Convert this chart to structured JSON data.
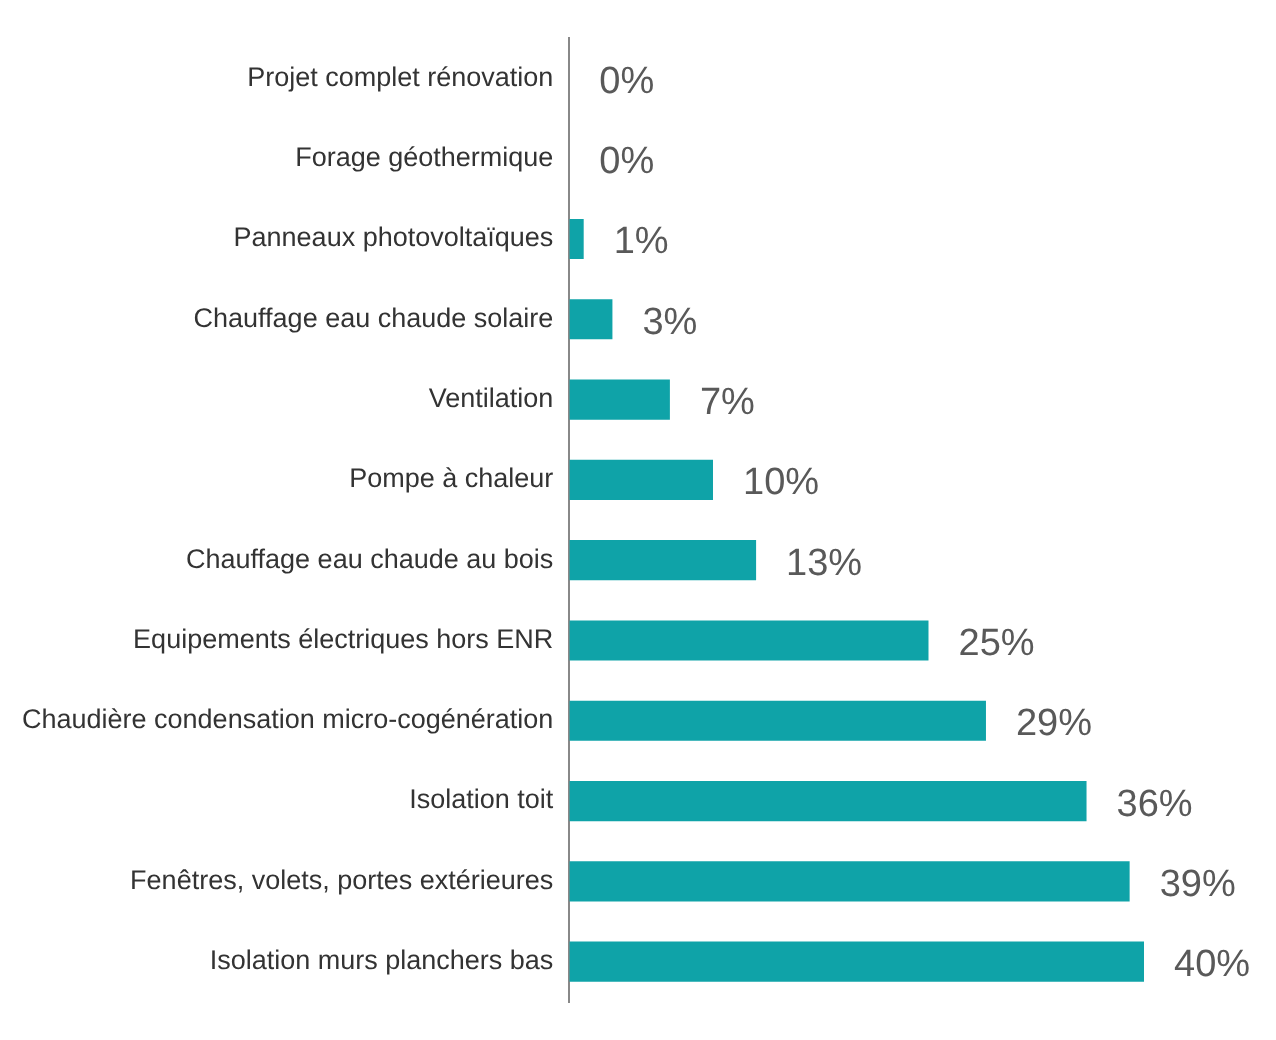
{
  "chart_data": {
    "type": "bar",
    "orientation": "horizontal",
    "categories": [
      "Projet complet rénovation",
      "Forage géothermique",
      "Panneaux photovoltaïques",
      "Chauffage eau chaude solaire",
      "Ventilation",
      "Pompe à chaleur",
      "Chauffage eau chaude au bois",
      "Equipements électriques hors ENR",
      "Chaudière condensation micro-cogénération",
      "Isolation toit",
      "Fenêtres, volets, portes extérieures",
      "Isolation murs planchers bas"
    ],
    "values": [
      0,
      0,
      1,
      3,
      7,
      10,
      13,
      25,
      29,
      36,
      39,
      40
    ],
    "value_labels": [
      "0%",
      "0%",
      "1%",
      "3%",
      "7%",
      "10%",
      "13%",
      "25%",
      "29%",
      "36%",
      "39%",
      "40%"
    ],
    "color": "#0fa3a8",
    "legend": false
  }
}
